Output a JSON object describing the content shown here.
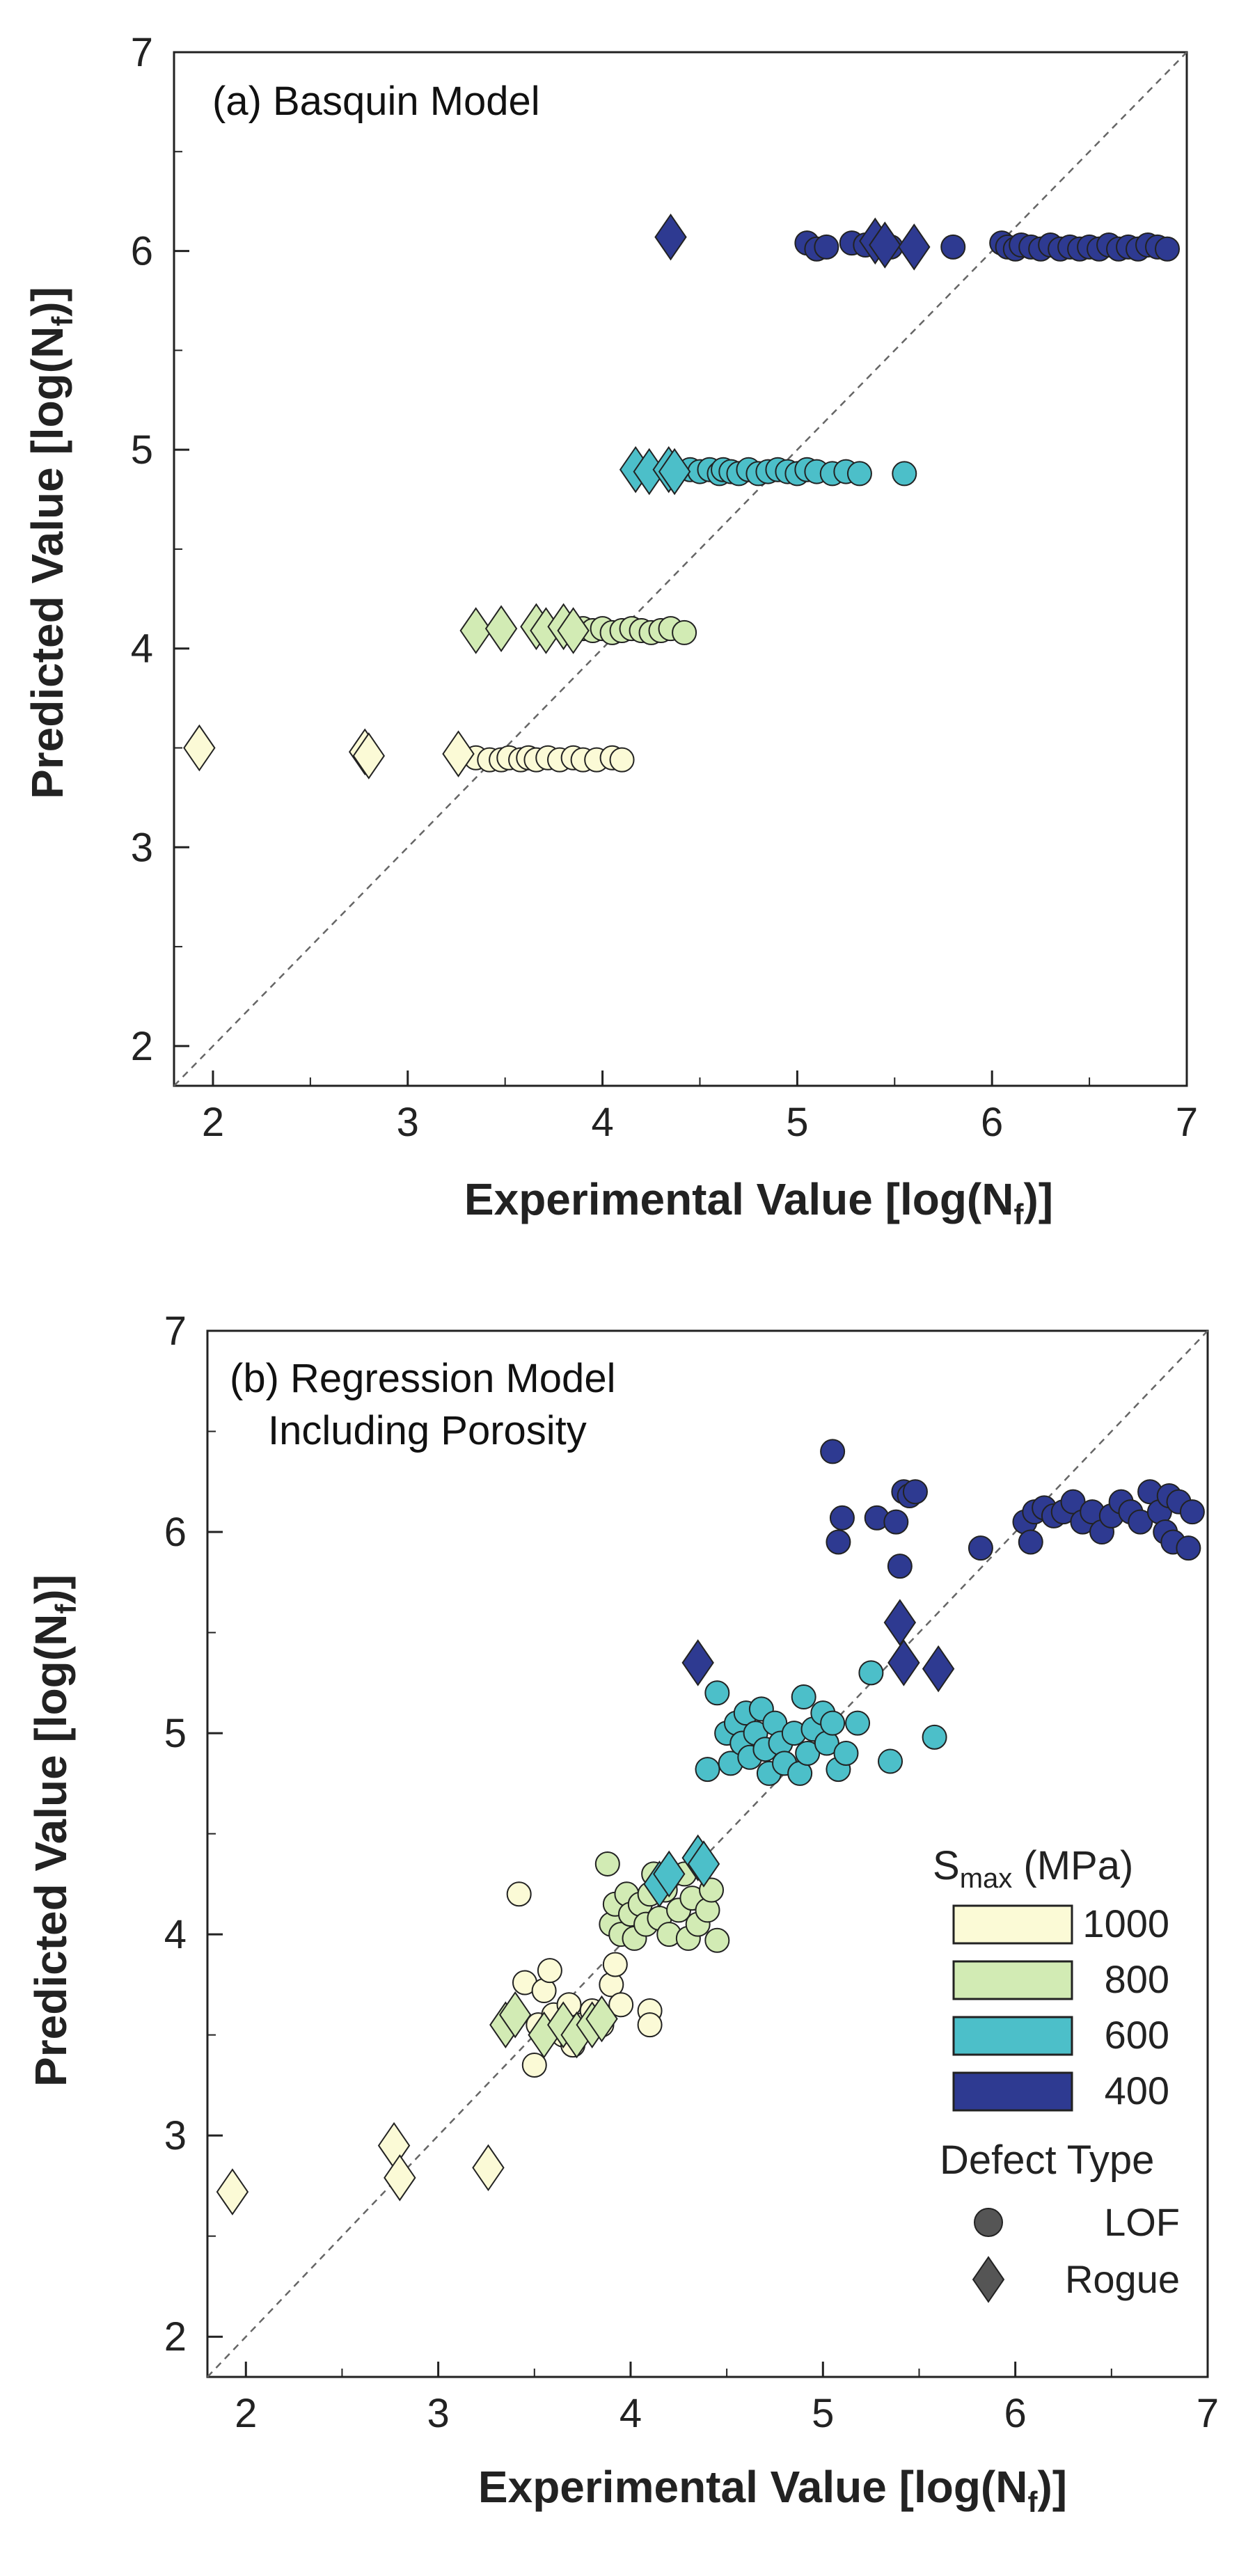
{
  "colors": {
    "1000": "#fbfad6",
    "800": "#d2ebb4",
    "600": "#4cbfc9",
    "400": "#2e3a91",
    "identity_line": "#666666",
    "axis": "#222222"
  },
  "legend": {
    "smax_main": "S",
    "smax_sub": "max",
    "smax_unit": " (MPa)",
    "stress_levels": [
      "1000",
      "800",
      "600",
      "400"
    ],
    "defect_title": "Defect Type",
    "defect_types": [
      {
        "label": "LOF",
        "marker": "circle-icon"
      },
      {
        "label": "Rogue",
        "marker": "diamond-icon"
      }
    ]
  },
  "chart_data": [
    {
      "type": "scatter",
      "title_lines": [
        "(a) Basquin Model"
      ],
      "xlabel_main": "Experimental Value [log(N",
      "xlabel_sub": "f",
      "xlabel_end": ")]",
      "ylabel_main": "Predicted Value [log(N",
      "ylabel_sub": "f",
      "ylabel_end": ")]",
      "xlim": [
        1.8,
        7
      ],
      "ylim": [
        1.8,
        7
      ],
      "xticks": [
        "2",
        "3",
        "4",
        "5",
        "6",
        "7"
      ],
      "yticks": [
        "2",
        "3",
        "4",
        "5",
        "6",
        "7"
      ],
      "identity_line": true,
      "series": [
        {
          "name": "1000 MPa LOF",
          "stress": "1000",
          "marker": "circle",
          "points": [
            [
              3.35,
              3.45
            ],
            [
              3.42,
              3.44
            ],
            [
              3.48,
              3.44
            ],
            [
              3.52,
              3.45
            ],
            [
              3.58,
              3.44
            ],
            [
              3.62,
              3.45
            ],
            [
              3.66,
              3.44
            ],
            [
              3.72,
              3.45
            ],
            [
              3.78,
              3.44
            ],
            [
              3.85,
              3.45
            ],
            [
              3.9,
              3.44
            ],
            [
              3.97,
              3.44
            ],
            [
              4.05,
              3.45
            ],
            [
              4.1,
              3.44
            ]
          ]
        },
        {
          "name": "1000 MPa Rogue",
          "stress": "1000",
          "marker": "diamond",
          "points": [
            [
              1.93,
              3.5
            ],
            [
              2.78,
              3.48
            ],
            [
              2.8,
              3.46
            ],
            [
              3.26,
              3.47
            ]
          ]
        },
        {
          "name": "800 MPa LOF",
          "stress": "800",
          "marker": "circle",
          "points": [
            [
              3.9,
              4.1
            ],
            [
              3.95,
              4.09
            ],
            [
              4.0,
              4.1
            ],
            [
              4.05,
              4.08
            ],
            [
              4.1,
              4.09
            ],
            [
              4.15,
              4.1
            ],
            [
              4.2,
              4.09
            ],
            [
              4.25,
              4.08
            ],
            [
              4.3,
              4.09
            ],
            [
              4.35,
              4.1
            ],
            [
              4.42,
              4.08
            ]
          ]
        },
        {
          "name": "800 MPa Rogue",
          "stress": "800",
          "marker": "diamond",
          "points": [
            [
              3.35,
              4.09
            ],
            [
              3.48,
              4.1
            ],
            [
              3.66,
              4.11
            ],
            [
              3.71,
              4.09
            ],
            [
              3.8,
              4.11
            ],
            [
              3.85,
              4.09
            ]
          ]
        },
        {
          "name": "600 MPa LOF",
          "stress": "600",
          "marker": "circle",
          "points": [
            [
              4.45,
              4.9
            ],
            [
              4.5,
              4.89
            ],
            [
              4.55,
              4.9
            ],
            [
              4.6,
              4.88
            ],
            [
              4.62,
              4.9
            ],
            [
              4.66,
              4.89
            ],
            [
              4.7,
              4.88
            ],
            [
              4.75,
              4.9
            ],
            [
              4.8,
              4.88
            ],
            [
              4.85,
              4.89
            ],
            [
              4.9,
              4.9
            ],
            [
              4.95,
              4.89
            ],
            [
              5.0,
              4.88
            ],
            [
              5.05,
              4.9
            ],
            [
              5.1,
              4.89
            ],
            [
              5.18,
              4.88
            ],
            [
              5.25,
              4.89
            ],
            [
              5.32,
              4.88
            ],
            [
              5.55,
              4.88
            ]
          ]
        },
        {
          "name": "600 MPa Rogue",
          "stress": "600",
          "marker": "diamond",
          "points": [
            [
              4.17,
              4.9
            ],
            [
              4.24,
              4.89
            ],
            [
              4.34,
              4.9
            ],
            [
              4.37,
              4.89
            ]
          ]
        },
        {
          "name": "400 MPa LOF",
          "stress": "400",
          "marker": "circle",
          "points": [
            [
              5.05,
              6.04
            ],
            [
              5.1,
              6.01
            ],
            [
              5.15,
              6.02
            ],
            [
              5.28,
              6.04
            ],
            [
              5.35,
              6.03
            ],
            [
              5.42,
              6.04
            ],
            [
              5.48,
              6.02
            ],
            [
              5.8,
              6.02
            ],
            [
              6.05,
              6.04
            ],
            [
              6.08,
              6.02
            ],
            [
              6.12,
              6.01
            ],
            [
              6.15,
              6.03
            ],
            [
              6.2,
              6.02
            ],
            [
              6.25,
              6.01
            ],
            [
              6.3,
              6.03
            ],
            [
              6.35,
              6.01
            ],
            [
              6.4,
              6.02
            ],
            [
              6.45,
              6.01
            ],
            [
              6.5,
              6.02
            ],
            [
              6.55,
              6.01
            ],
            [
              6.6,
              6.03
            ],
            [
              6.65,
              6.01
            ],
            [
              6.7,
              6.02
            ],
            [
              6.75,
              6.01
            ],
            [
              6.8,
              6.03
            ],
            [
              6.85,
              6.02
            ],
            [
              6.9,
              6.01
            ]
          ]
        },
        {
          "name": "400 MPa Rogue",
          "stress": "400",
          "marker": "diamond",
          "points": [
            [
              4.35,
              6.07
            ],
            [
              5.4,
              6.05
            ],
            [
              5.45,
              6.03
            ],
            [
              5.6,
              6.02
            ]
          ]
        }
      ]
    },
    {
      "type": "scatter",
      "title_lines": [
        "(b) Regression Model",
        "Including Porosity"
      ],
      "xlabel_main": "Experimental Value [log(N",
      "xlabel_sub": "f",
      "xlabel_end": ")]",
      "ylabel_main": "Predicted Value [log(N",
      "ylabel_sub": "f",
      "ylabel_end": ")]",
      "xlim": [
        1.8,
        7
      ],
      "ylim": [
        1.8,
        7
      ],
      "xticks": [
        "2",
        "3",
        "4",
        "5",
        "6",
        "7"
      ],
      "yticks": [
        "2",
        "3",
        "4",
        "5",
        "6",
        "7"
      ],
      "identity_line": true,
      "series": [
        {
          "name": "1000 MPa LOF",
          "stress": "1000",
          "marker": "circle",
          "points": [
            [
              3.42,
              4.2
            ],
            [
              3.45,
              3.76
            ],
            [
              3.5,
              3.35
            ],
            [
              3.52,
              3.55
            ],
            [
              3.55,
              3.72
            ],
            [
              3.58,
              3.82
            ],
            [
              3.6,
              3.6
            ],
            [
              3.65,
              3.5
            ],
            [
              3.68,
              3.65
            ],
            [
              3.7,
              3.45
            ],
            [
              3.75,
              3.55
            ],
            [
              3.8,
              3.62
            ],
            [
              3.85,
              3.55
            ],
            [
              3.9,
              3.75
            ],
            [
              3.92,
              3.85
            ],
            [
              3.95,
              3.65
            ],
            [
              4.1,
              3.62
            ],
            [
              4.1,
              3.55
            ]
          ]
        },
        {
          "name": "1000 MPa Rogue",
          "stress": "1000",
          "marker": "diamond",
          "points": [
            [
              1.93,
              2.72
            ],
            [
              2.77,
              2.95
            ],
            [
              2.8,
              2.79
            ],
            [
              3.26,
              2.84
            ]
          ]
        },
        {
          "name": "800 MPa LOF",
          "stress": "800",
          "marker": "circle",
          "points": [
            [
              3.88,
              4.35
            ],
            [
              3.9,
              4.05
            ],
            [
              3.92,
              4.15
            ],
            [
              3.95,
              4.0
            ],
            [
              3.98,
              4.2
            ],
            [
              4.0,
              4.1
            ],
            [
              4.02,
              3.98
            ],
            [
              4.05,
              4.15
            ],
            [
              4.08,
              4.05
            ],
            [
              4.1,
              4.2
            ],
            [
              4.12,
              4.3
            ],
            [
              4.15,
              4.08
            ],
            [
              4.18,
              4.22
            ],
            [
              4.2,
              4.0
            ],
            [
              4.25,
              4.12
            ],
            [
              4.28,
              4.3
            ],
            [
              4.3,
              3.98
            ],
            [
              4.32,
              4.18
            ],
            [
              4.35,
              4.05
            ],
            [
              4.4,
              4.12
            ],
            [
              4.42,
              4.22
            ],
            [
              4.45,
              3.97
            ]
          ]
        },
        {
          "name": "800 MPa Rogue",
          "stress": "800",
          "marker": "diamond",
          "points": [
            [
              3.35,
              3.55
            ],
            [
              3.4,
              3.6
            ],
            [
              3.55,
              3.5
            ],
            [
              3.65,
              3.55
            ],
            [
              3.72,
              3.5
            ],
            [
              3.8,
              3.55
            ],
            [
              3.85,
              3.58
            ]
          ]
        },
        {
          "name": "600 MPa LOF",
          "stress": "600",
          "marker": "circle",
          "points": [
            [
              4.4,
              4.82
            ],
            [
              4.45,
              5.2
            ],
            [
              4.5,
              5.0
            ],
            [
              4.52,
              4.85
            ],
            [
              4.55,
              5.05
            ],
            [
              4.58,
              4.95
            ],
            [
              4.6,
              5.1
            ],
            [
              4.62,
              4.88
            ],
            [
              4.65,
              5.0
            ],
            [
              4.68,
              5.12
            ],
            [
              4.7,
              4.92
            ],
            [
              4.72,
              4.8
            ],
            [
              4.75,
              5.05
            ],
            [
              4.78,
              4.95
            ],
            [
              4.8,
              4.85
            ],
            [
              4.85,
              5.0
            ],
            [
              4.88,
              4.8
            ],
            [
              4.9,
              5.18
            ],
            [
              4.92,
              4.9
            ],
            [
              4.95,
              5.02
            ],
            [
              5.0,
              5.1
            ],
            [
              5.02,
              4.95
            ],
            [
              5.05,
              5.05
            ],
            [
              5.08,
              4.82
            ],
            [
              5.12,
              4.9
            ],
            [
              5.18,
              5.05
            ],
            [
              5.25,
              5.3
            ],
            [
              5.35,
              4.86
            ],
            [
              5.58,
              4.98
            ]
          ]
        },
        {
          "name": "600 MPa Rogue",
          "stress": "600",
          "marker": "diamond",
          "points": [
            [
              4.15,
              4.25
            ],
            [
              4.2,
              4.3
            ],
            [
              4.35,
              4.38
            ],
            [
              4.38,
              4.35
            ]
          ]
        },
        {
          "name": "400 MPa LOF",
          "stress": "400",
          "marker": "circle",
          "points": [
            [
              5.05,
              6.4
            ],
            [
              5.08,
              5.95
            ],
            [
              5.1,
              6.07
            ],
            [
              5.28,
              6.07
            ],
            [
              5.38,
              6.05
            ],
            [
              5.4,
              5.83
            ],
            [
              5.42,
              6.2
            ],
            [
              5.45,
              6.18
            ],
            [
              5.48,
              6.2
            ],
            [
              5.82,
              5.92
            ],
            [
              6.05,
              6.05
            ],
            [
              6.08,
              5.95
            ],
            [
              6.1,
              6.1
            ],
            [
              6.15,
              6.12
            ],
            [
              6.2,
              6.08
            ],
            [
              6.25,
              6.1
            ],
            [
              6.3,
              6.15
            ],
            [
              6.35,
              6.05
            ],
            [
              6.4,
              6.1
            ],
            [
              6.45,
              6.0
            ],
            [
              6.5,
              6.08
            ],
            [
              6.55,
              6.15
            ],
            [
              6.6,
              6.1
            ],
            [
              6.65,
              6.05
            ],
            [
              6.7,
              6.2
            ],
            [
              6.75,
              6.1
            ],
            [
              6.78,
              6.0
            ],
            [
              6.8,
              6.18
            ],
            [
              6.82,
              5.95
            ],
            [
              6.85,
              6.15
            ],
            [
              6.9,
              5.92
            ],
            [
              6.92,
              6.1
            ]
          ]
        },
        {
          "name": "400 MPa Rogue",
          "stress": "400",
          "marker": "diamond",
          "points": [
            [
              4.35,
              5.35
            ],
            [
              5.4,
              5.55
            ],
            [
              5.42,
              5.35
            ],
            [
              5.6,
              5.32
            ]
          ]
        }
      ]
    }
  ]
}
